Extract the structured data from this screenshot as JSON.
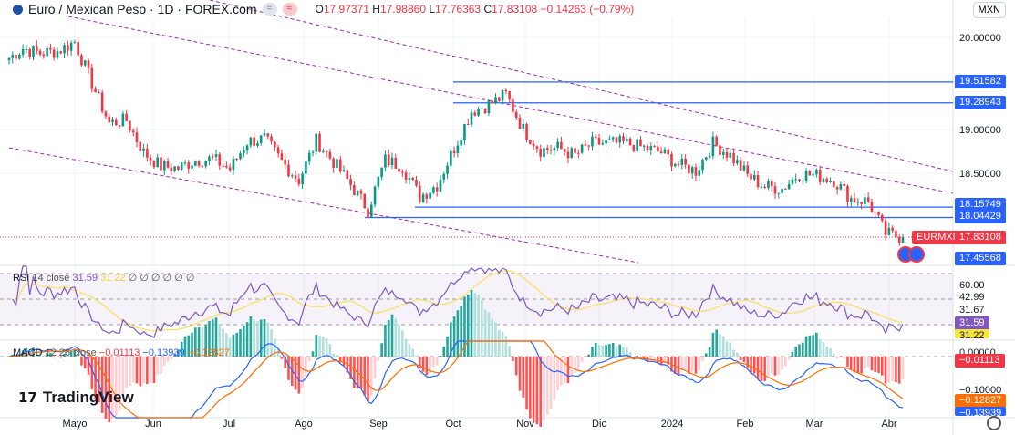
{
  "header": {
    "symbol_title": "Euro / Mexican Peso · 1D · FOREX.com",
    "open_label": "O",
    "open": "17.97371",
    "high_label": "H",
    "high": "17.98860",
    "low_label": "L",
    "low": "17.76363",
    "close_label": "C",
    "close": "17.83108",
    "change": "−0.14263 (−0.79%)"
  },
  "currency_button": "MXN",
  "rsi": {
    "label": "RSI",
    "params": "14 close",
    "value": "31.59",
    "ma_value": "31.22",
    "empty_values": "∅ ∅ ∅ ∅ ∅ ∅",
    "axis": [
      "60.00",
      "42.99",
      "31.67"
    ]
  },
  "macd": {
    "label": "MACD",
    "params": "12 26 close",
    "hist": "−0.01113",
    "macd": "−0.13939",
    "signal": "−0.12827",
    "axis": [
      "0.00000",
      "−0.10000"
    ]
  },
  "price_axis": [
    "20.00000",
    "19.00000",
    "18.50000"
  ],
  "levels": [
    {
      "value": "19.51582",
      "p": 19.51582
    },
    {
      "value": "19.28943",
      "p": 19.28943
    },
    {
      "value": "18.15749",
      "p": 18.15749
    },
    {
      "value": "18.04429",
      "p": 18.04429
    }
  ],
  "current": {
    "symbol": "EURMXN",
    "price": "17.83108",
    "p": 17.83108
  },
  "low_label": "17.45568",
  "time_axis": [
    "Mayo",
    "Jun",
    "Jul",
    "Ago",
    "Sep",
    "Oct",
    "Nov",
    "Dic",
    "2024",
    "Feb",
    "Mar",
    "Abr"
  ],
  "brand": "TradingView",
  "colors": {
    "up": "#089981",
    "down": "#f23645",
    "rsi": "#7e57c2",
    "rsi_ma": "#f7e37a",
    "macd": "#2962ff",
    "signal": "#ff6d00",
    "level": "#2962ff",
    "channel": "#9c27b0"
  },
  "chart_data": {
    "type": "candlestick",
    "interval": "1D",
    "start": "2023-04-07",
    "end": "2024-04-05",
    "weekly_closes": [
      19.75,
      19.88,
      19.83,
      19.85,
      19.95,
      19.5,
      19.07,
      19.1,
      18.75,
      18.6,
      18.58,
      18.67,
      18.68,
      18.57,
      18.87,
      18.9,
      18.65,
      18.45,
      18.88,
      18.65,
      18.4,
      18.13,
      18.67,
      18.6,
      18.27,
      18.4,
      18.8,
      19.2,
      19.27,
      19.38,
      19.0,
      18.78,
      18.8,
      18.72,
      18.85,
      18.85,
      18.85,
      18.8,
      18.75,
      18.62,
      18.55,
      18.85,
      18.72,
      18.5,
      18.38,
      18.36,
      18.52,
      18.5,
      18.45,
      18.25,
      18.22,
      17.87,
      17.83
    ]
  }
}
